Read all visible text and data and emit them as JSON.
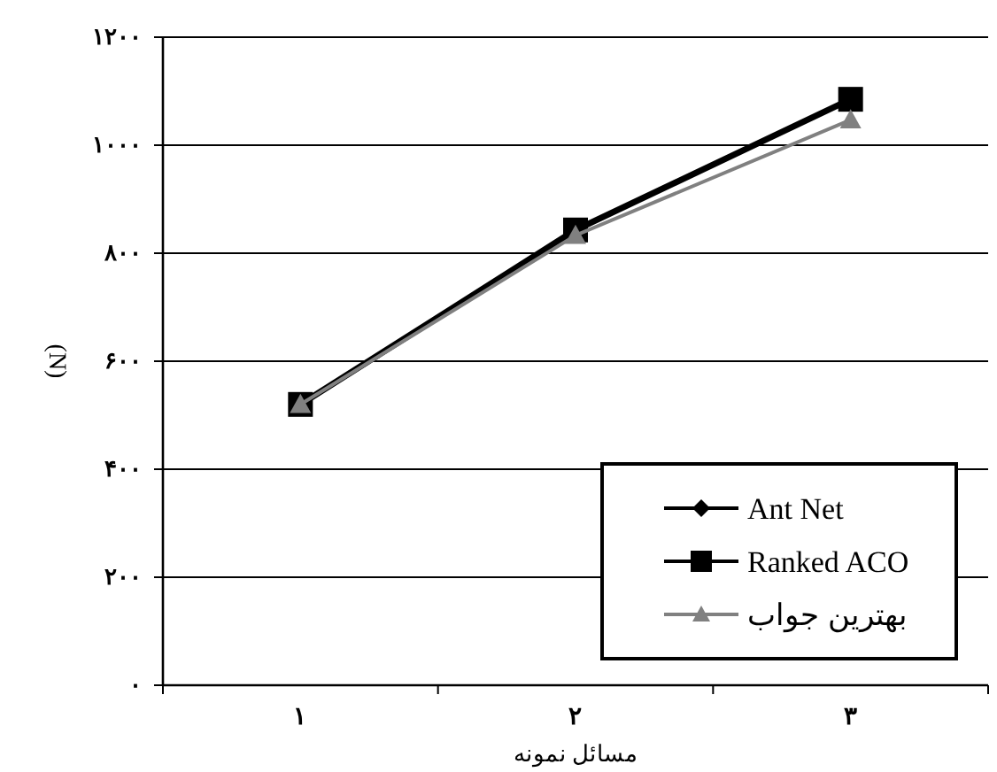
{
  "chart_data": {
    "type": "line",
    "xlabel": "مسائل نمونه",
    "ylabel": "(N)",
    "categories": [
      "۱",
      "۲",
      "۳"
    ],
    "series": [
      {
        "name": "Ant Net",
        "color": "#000000",
        "marker": "diamond",
        "values": [
          null,
          null,
          null
        ]
      },
      {
        "name": "Ranked ACO",
        "color": "#000000",
        "marker": "square",
        "values": [
          520,
          843,
          1085
        ]
      },
      {
        "name": "بهترین جواب",
        "color": "#808080",
        "marker": "triangle",
        "values": [
          520,
          833,
          1047
        ]
      }
    ],
    "ylim": [
      0,
      1200
    ],
    "yticks": [
      {
        "value": 0,
        "label": "۰"
      },
      {
        "value": 200,
        "label": "۲۰۰"
      },
      {
        "value": 400,
        "label": "۴۰۰"
      },
      {
        "value": 600,
        "label": "۶۰۰"
      },
      {
        "value": 800,
        "label": "۸۰۰"
      },
      {
        "value": 1000,
        "label": "۱۰۰۰"
      },
      {
        "value": 1200,
        "label": "۱۲۰۰"
      }
    ],
    "grid": "y",
    "legend": "bottom right"
  }
}
